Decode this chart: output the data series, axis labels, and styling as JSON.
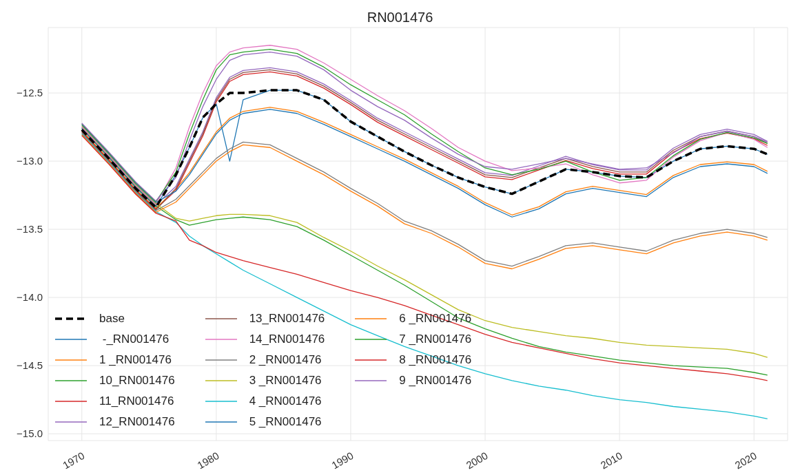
{
  "chart_data": {
    "type": "line",
    "title": "RN001476",
    "x": [
      1970,
      1972,
      1974,
      1975.5,
      1977,
      1978,
      1979,
      1980,
      1981,
      1982,
      1984,
      1986,
      1988,
      1990,
      1992,
      1994,
      1996,
      1998,
      2000,
      2002,
      2004,
      2006,
      2008,
      2010,
      2012,
      2014,
      2016,
      2018,
      2020,
      2021
    ],
    "xlim": [
      1967.5,
      2022.5
    ],
    "xticks": [
      1970,
      1980,
      1990,
      2000,
      2010,
      2020
    ],
    "ylim": [
      -15.05,
      -12.02
    ],
    "yticks": [
      {
        "value": -15,
        "label": "−15.0"
      },
      {
        "value": -14.5,
        "label": "−14.5"
      },
      {
        "value": -14,
        "label": "−14.0"
      },
      {
        "value": -13.5,
        "label": "−13.5"
      },
      {
        "value": -13,
        "label": "−13.0"
      },
      {
        "value": -12.5,
        "label": "−12.5"
      }
    ],
    "grid": true,
    "legend": "bottom left",
    "marker": "none",
    "series": [
      {
        "name": "base",
        "color": "#000000",
        "line_style": "dashed",
        "values": [
          -12.77,
          -12.98,
          -13.2,
          -13.34,
          -13.1,
          -12.9,
          -12.68,
          -12.58,
          -12.5,
          -12.5,
          -12.48,
          -12.48,
          -12.55,
          -12.71,
          -12.82,
          -12.93,
          -13.03,
          -13.12,
          -13.19,
          -13.24,
          -13.15,
          -13.06,
          -13.08,
          -13.11,
          -13.12,
          -13.0,
          -12.91,
          -12.89,
          -12.91,
          -12.95
        ]
      },
      {
        "name": " -_RN001476",
        "color": "#1f77b4",
        "line_style": "solid",
        "values": [
          -12.764,
          -12.974,
          -13.194,
          -13.334,
          -13.1,
          -12.9,
          -12.68,
          -12.58,
          -13.0,
          -12.55,
          -12.48,
          -12.48,
          -12.55,
          -12.71,
          -12.82,
          -12.93,
          -13.03,
          -13.12,
          -13.19,
          -13.24,
          -13.15,
          -13.06,
          -13.08,
          -13.11,
          -13.12,
          -13.0,
          -12.91,
          -12.89,
          -12.91,
          -12.95
        ]
      },
      {
        "name": "1 _RN001476",
        "color": "#ff7f0e",
        "line_style": "solid",
        "values": [
          -12.776,
          -12.986,
          -13.206,
          -13.346,
          -13.205,
          -13.085,
          -12.935,
          -12.785,
          -12.685,
          -12.635,
          -12.605,
          -12.635,
          -12.715,
          -12.805,
          -12.895,
          -12.985,
          -13.085,
          -13.185,
          -13.305,
          -13.395,
          -13.335,
          -13.225,
          -13.185,
          -13.215,
          -13.245,
          -13.105,
          -13.025,
          -13.005,
          -13.025,
          -13.075
        ]
      },
      {
        "name": "10_RN001476",
        "color": "#2ca02c",
        "line_style": "solid",
        "values": [
          -12.758,
          -12.968,
          -13.188,
          -13.328,
          -13.43,
          -13.47,
          -13.45,
          -13.43,
          -13.42,
          -13.41,
          -13.43,
          -13.48,
          -13.58,
          -13.69,
          -13.8,
          -13.91,
          -14.03,
          -14.15,
          -14.23,
          -14.3,
          -14.36,
          -14.4,
          -14.43,
          -14.46,
          -14.48,
          -14.5,
          -14.51,
          -14.52,
          -14.55,
          -14.57
        ]
      },
      {
        "name": "11_RN001476",
        "color": "#d62728",
        "line_style": "solid",
        "values": [
          -12.782,
          -12.992,
          -13.212,
          -13.352,
          -13.215,
          -13.015,
          -12.815,
          -12.565,
          -12.415,
          -12.365,
          -12.345,
          -12.375,
          -12.465,
          -12.585,
          -12.715,
          -12.815,
          -12.915,
          -13.015,
          -13.115,
          -13.135,
          -13.065,
          -12.995,
          -13.055,
          -13.095,
          -13.095,
          -12.935,
          -12.835,
          -12.795,
          -12.835,
          -12.885
        ]
      },
      {
        "name": "12_RN001476",
        "color": "#9467bd",
        "line_style": "solid",
        "values": [
          -12.752,
          -12.962,
          -13.182,
          -13.322,
          -13.185,
          -12.985,
          -12.785,
          -12.535,
          -12.385,
          -12.335,
          -12.315,
          -12.345,
          -12.435,
          -12.555,
          -12.685,
          -12.785,
          -12.885,
          -12.985,
          -13.085,
          -13.105,
          -13.035,
          -12.965,
          -13.025,
          -13.065,
          -13.065,
          -12.905,
          -12.805,
          -12.765,
          -12.805,
          -12.855
        ]
      },
      {
        "name": "13_RN001476",
        "color": "#8c564b",
        "line_style": "solid",
        "values": [
          -12.788,
          -12.998,
          -13.218,
          -13.358,
          -13.2,
          -13.0,
          -12.8,
          -12.55,
          -12.4,
          -12.35,
          -12.33,
          -12.36,
          -12.45,
          -12.57,
          -12.7,
          -12.8,
          -12.9,
          -13.0,
          -13.1,
          -13.12,
          -13.05,
          -12.98,
          -13.04,
          -13.08,
          -13.08,
          -12.92,
          -12.82,
          -12.78,
          -12.82,
          -12.87
        ]
      },
      {
        "name": "14_RN001476",
        "color": "#e377c2",
        "line_style": "solid",
        "values": [
          -12.746,
          -12.956,
          -13.176,
          -13.316,
          -13.05,
          -12.75,
          -12.5,
          -12.3,
          -12.2,
          -12.17,
          -12.15,
          -12.18,
          -12.28,
          -12.4,
          -12.52,
          -12.63,
          -12.76,
          -12.9,
          -13.0,
          -13.07,
          -13.05,
          -13.02,
          -13.1,
          -13.16,
          -13.14,
          -12.97,
          -12.85,
          -12.79,
          -12.84,
          -12.9
        ]
      },
      {
        "name": "2 _RN001476",
        "color": "#7f7f7f",
        "line_style": "solid",
        "values": [
          -12.794,
          -13.004,
          -13.224,
          -13.364,
          -13.28,
          -13.18,
          -13.08,
          -12.98,
          -12.91,
          -12.86,
          -12.88,
          -12.98,
          -13.08,
          -13.2,
          -13.31,
          -13.44,
          -13.51,
          -13.61,
          -13.73,
          -13.77,
          -13.7,
          -13.62,
          -13.6,
          -13.63,
          -13.66,
          -13.58,
          -13.53,
          -13.5,
          -13.53,
          -13.56
        ]
      },
      {
        "name": "3 _RN001476",
        "color": "#bcbd22",
        "line_style": "solid",
        "values": [
          -12.74,
          -12.95,
          -13.17,
          -13.31,
          -13.42,
          -13.44,
          -13.42,
          -13.4,
          -13.39,
          -13.39,
          -13.4,
          -13.45,
          -13.56,
          -13.66,
          -13.77,
          -13.87,
          -13.98,
          -14.09,
          -14.17,
          -14.22,
          -14.25,
          -14.28,
          -14.3,
          -14.33,
          -14.35,
          -14.36,
          -14.37,
          -14.38,
          -14.41,
          -14.44
        ]
      },
      {
        "name": "4 _RN001476",
        "color": "#17becf",
        "line_style": "solid",
        "values": [
          -12.8,
          -13.01,
          -13.23,
          -13.37,
          -13.45,
          -13.55,
          -13.62,
          -13.68,
          -13.74,
          -13.8,
          -13.9,
          -14.0,
          -14.1,
          -14.2,
          -14.28,
          -14.36,
          -14.43,
          -14.5,
          -14.56,
          -14.61,
          -14.65,
          -14.68,
          -14.72,
          -14.75,
          -14.77,
          -14.8,
          -14.82,
          -14.84,
          -14.87,
          -14.89
        ]
      },
      {
        "name": "5 _RN001476",
        "color": "#1f77b4",
        "line_style": "solid",
        "values": [
          -12.734,
          -12.944,
          -13.164,
          -13.304,
          -13.22,
          -13.1,
          -12.95,
          -12.8,
          -12.7,
          -12.65,
          -12.62,
          -12.65,
          -12.73,
          -12.82,
          -12.91,
          -13.0,
          -13.1,
          -13.2,
          -13.32,
          -13.41,
          -13.35,
          -13.24,
          -13.2,
          -13.23,
          -13.26,
          -13.12,
          -13.04,
          -13.02,
          -13.04,
          -13.09
        ]
      },
      {
        "name": "6 _RN001476",
        "color": "#ff7f0e",
        "line_style": "solid",
        "values": [
          -12.806,
          -13.016,
          -13.236,
          -13.376,
          -13.3,
          -13.2,
          -13.1,
          -13.0,
          -12.93,
          -12.88,
          -12.9,
          -13.0,
          -13.1,
          -13.22,
          -13.33,
          -13.46,
          -13.53,
          -13.63,
          -13.75,
          -13.79,
          -13.72,
          -13.64,
          -13.62,
          -13.65,
          -13.68,
          -13.6,
          -13.55,
          -13.52,
          -13.55,
          -13.58
        ]
      },
      {
        "name": "7 _RN001476",
        "color": "#2ca02c",
        "line_style": "solid",
        "values": [
          -12.728,
          -12.938,
          -13.158,
          -13.298,
          -13.08,
          -12.8,
          -12.55,
          -12.33,
          -12.22,
          -12.2,
          -12.18,
          -12.21,
          -12.31,
          -12.44,
          -12.55,
          -12.66,
          -12.8,
          -12.93,
          -13.05,
          -13.1,
          -13.06,
          -13.0,
          -13.08,
          -13.14,
          -13.12,
          -12.96,
          -12.84,
          -12.79,
          -12.83,
          -12.87
        ]
      },
      {
        "name": "8 _RN001476",
        "color": "#d62728",
        "line_style": "solid",
        "values": [
          -12.812,
          -13.022,
          -13.242,
          -13.382,
          -13.44,
          -13.58,
          -13.62,
          -13.67,
          -13.7,
          -13.73,
          -13.78,
          -13.83,
          -13.89,
          -13.95,
          -14.0,
          -14.06,
          -14.13,
          -14.2,
          -14.27,
          -14.33,
          -14.37,
          -14.41,
          -14.45,
          -14.48,
          -14.5,
          -14.52,
          -14.54,
          -14.56,
          -14.59,
          -14.61
        ]
      },
      {
        "name": "9 _RN001476",
        "color": "#9467bd",
        "line_style": "solid",
        "values": [
          -12.722,
          -12.932,
          -13.152,
          -13.292,
          -13.12,
          -12.85,
          -12.6,
          -12.4,
          -12.26,
          -12.22,
          -12.2,
          -12.23,
          -12.33,
          -12.48,
          -12.6,
          -12.7,
          -12.83,
          -12.95,
          -13.04,
          -13.06,
          -13.02,
          -12.98,
          -13.02,
          -13.06,
          -13.05,
          -12.94,
          -12.82,
          -12.78,
          -12.82,
          -12.86
        ]
      }
    ]
  }
}
